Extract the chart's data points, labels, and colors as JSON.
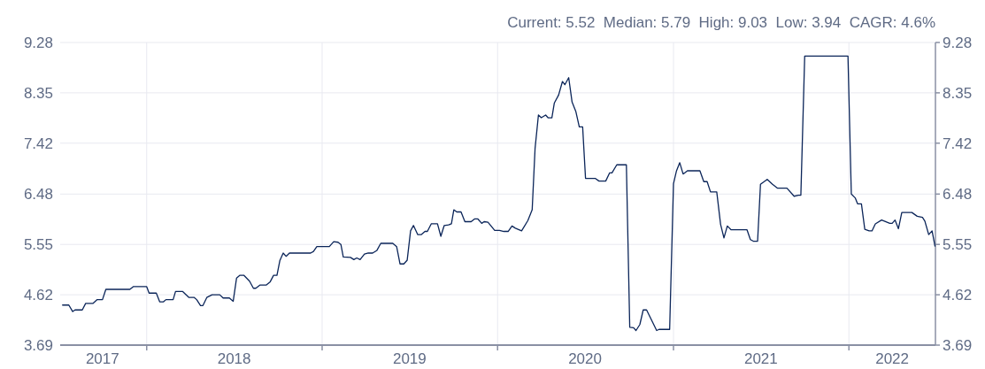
{
  "chart_data": {
    "type": "line",
    "title": "Current: 5.52  Median: 5.79  High: 9.03  Low: 3.94  CAGR: 4.6%",
    "x": [
      "2017-07-10",
      "2017-07-23",
      "2017-07-31",
      "2017-08-05",
      "2017-08-20",
      "2017-08-27",
      "2017-09-11",
      "2017-09-20",
      "2017-10-01",
      "2017-10-08",
      "2017-10-21",
      "2017-11-27",
      "2017-12-04",
      "2018-01-01",
      "2018-01-06",
      "2018-01-21",
      "2018-01-28",
      "2018-02-05",
      "2018-02-10",
      "2018-02-25",
      "2018-03-02",
      "2018-03-17",
      "2018-03-30",
      "2018-04-10",
      "2018-04-15",
      "2018-04-23",
      "2018-04-28",
      "2018-05-06",
      "2018-05-17",
      "2018-06-02",
      "2018-06-09",
      "2018-06-22",
      "2018-06-30",
      "2018-07-07",
      "2018-07-14",
      "2018-07-22",
      "2018-08-03",
      "2018-08-11",
      "2018-08-16",
      "2018-08-25",
      "2018-09-07",
      "2018-09-15",
      "2018-09-22",
      "2018-09-29",
      "2018-10-05",
      "2018-10-12",
      "2018-10-18",
      "2018-10-25",
      "2018-12-08",
      "2018-12-14",
      "2018-12-21",
      "2019-01-16",
      "2019-01-25",
      "2019-02-03",
      "2019-02-09",
      "2019-02-14",
      "2019-03-01",
      "2019-03-08",
      "2019-03-14",
      "2019-03-21",
      "2019-03-30",
      "2019-04-07",
      "2019-04-16",
      "2019-04-25",
      "2019-05-03",
      "2019-05-28",
      "2019-06-05",
      "2019-06-12",
      "2019-06-20",
      "2019-06-27",
      "2019-07-04",
      "2019-07-10",
      "2019-07-19",
      "2019-07-26",
      "2019-08-03",
      "2019-08-08",
      "2019-08-16",
      "2019-08-29",
      "2019-09-05",
      "2019-09-12",
      "2019-09-21",
      "2019-09-27",
      "2019-10-02",
      "2019-10-08",
      "2019-10-17",
      "2019-10-25",
      "2019-11-07",
      "2019-11-14",
      "2019-11-21",
      "2019-11-29",
      "2019-12-04",
      "2019-12-12",
      "2019-12-26",
      "2020-01-05",
      "2020-01-14",
      "2020-01-23",
      "2020-01-31",
      "2020-02-07",
      "2020-02-20",
      "2020-03-04",
      "2020-03-13",
      "2020-03-19",
      "2020-03-26",
      "2020-04-01",
      "2020-04-10",
      "2020-04-15",
      "2020-04-23",
      "2020-04-28",
      "2020-05-07",
      "2020-05-15",
      "2020-05-20",
      "2020-05-28",
      "2020-06-04",
      "2020-06-12",
      "2020-06-19",
      "2020-06-26",
      "2020-07-02",
      "2020-07-22",
      "2020-07-30",
      "2020-08-13",
      "2020-08-21",
      "2020-08-26",
      "2020-09-05",
      "2020-09-25",
      "2020-10-02",
      "2020-10-10",
      "2020-10-15",
      "2020-10-23",
      "2020-10-30",
      "2020-11-06",
      "2020-11-27",
      "2020-12-02",
      "2020-12-24",
      "2021-01-01",
      "2021-01-07",
      "2021-01-14",
      "2021-01-21",
      "2021-01-30",
      "2021-02-25",
      "2021-03-05",
      "2021-03-12",
      "2021-03-19",
      "2021-04-01",
      "2021-04-09",
      "2021-04-16",
      "2021-04-23",
      "2021-05-01",
      "2021-06-03",
      "2021-06-10",
      "2021-06-16",
      "2021-06-25",
      "2021-07-01",
      "2021-07-15",
      "2021-07-26",
      "2021-08-05",
      "2021-08-25",
      "2021-09-09",
      "2021-09-18",
      "2021-09-23",
      "2021-10-01",
      "2021-12-30",
      "2022-01-06",
      "2022-01-14",
      "2022-01-19",
      "2022-01-27",
      "2022-02-03",
      "2022-02-12",
      "2022-02-18",
      "2022-02-25",
      "2022-03-10",
      "2022-03-27",
      "2022-04-01",
      "2022-04-07",
      "2022-04-14",
      "2022-04-21",
      "2022-05-12",
      "2022-05-23",
      "2022-06-03",
      "2022-06-08",
      "2022-06-16",
      "2022-06-23",
      "2022-06-29"
    ],
    "series": [
      {
        "color": "#0b2559",
        "values": [
          4.43,
          4.43,
          4.31,
          4.34,
          4.34,
          4.46,
          4.46,
          4.53,
          4.53,
          4.72,
          4.72,
          4.72,
          4.77,
          4.77,
          4.65,
          4.65,
          4.49,
          4.49,
          4.53,
          4.53,
          4.68,
          4.68,
          4.57,
          4.57,
          4.53,
          4.42,
          4.42,
          4.57,
          4.62,
          4.62,
          4.56,
          4.56,
          4.5,
          4.93,
          4.98,
          4.98,
          4.87,
          4.74,
          4.74,
          4.8,
          4.8,
          4.86,
          4.98,
          4.98,
          5.25,
          5.39,
          5.33,
          5.39,
          5.39,
          5.42,
          5.51,
          5.51,
          5.6,
          5.59,
          5.55,
          5.32,
          5.31,
          5.27,
          5.3,
          5.27,
          5.37,
          5.39,
          5.39,
          5.44,
          5.57,
          5.57,
          5.51,
          5.19,
          5.19,
          5.26,
          5.8,
          5.9,
          5.73,
          5.73,
          5.79,
          5.79,
          5.93,
          5.93,
          5.7,
          5.9,
          5.91,
          5.93,
          6.19,
          6.15,
          6.15,
          5.97,
          5.97,
          6.02,
          6.02,
          5.94,
          5.97,
          5.96,
          5.81,
          5.81,
          5.79,
          5.79,
          5.89,
          5.85,
          5.8,
          5.99,
          6.19,
          7.32,
          7.94,
          7.89,
          7.94,
          7.89,
          7.89,
          8.16,
          8.31,
          8.56,
          8.5,
          8.63,
          8.18,
          8.0,
          7.72,
          7.72,
          6.77,
          6.77,
          6.72,
          6.72,
          6.87,
          6.87,
          7.02,
          7.02,
          4.02,
          4.01,
          3.96,
          4.07,
          4.34,
          4.34,
          3.96,
          3.98,
          3.98,
          6.67,
          6.9,
          7.06,
          6.85,
          6.91,
          6.91,
          6.71,
          6.71,
          6.52,
          6.52,
          5.92,
          5.67,
          5.89,
          5.82,
          5.82,
          5.64,
          5.61,
          5.61,
          6.66,
          6.75,
          6.66,
          6.59,
          6.59,
          6.44,
          6.46,
          6.46,
          9.03,
          9.03,
          6.48,
          6.41,
          6.3,
          6.3,
          5.83,
          5.8,
          5.8,
          5.93,
          6.0,
          5.94,
          5.94,
          6.0,
          5.84,
          6.14,
          6.14,
          6.07,
          6.05,
          5.98,
          5.73,
          5.8,
          5.52
        ]
      }
    ],
    "xlim": [
      "2017-07-05",
      "2022-06-30"
    ],
    "xticks": [
      {
        "value": "2017-10-01",
        "label": "2017"
      },
      {
        "value": "2018-01-01",
        "label": null
      },
      {
        "value": "2018-07-02",
        "label": "2018"
      },
      {
        "value": "2019-01-01",
        "label": null
      },
      {
        "value": "2019-07-02",
        "label": "2019"
      },
      {
        "value": "2020-01-01",
        "label": null
      },
      {
        "value": "2020-07-01",
        "label": "2020"
      },
      {
        "value": "2021-01-01",
        "label": null
      },
      {
        "value": "2021-07-02",
        "label": "2021"
      },
      {
        "value": "2022-01-01",
        "label": null
      },
      {
        "value": "2022-04-01",
        "label": "2022"
      }
    ],
    "ylim": [
      3.69,
      9.28
    ],
    "yticks": [
      3.69,
      4.62,
      5.55,
      6.48,
      7.42,
      8.35,
      9.28
    ],
    "y2lim": [
      3.69,
      9.28
    ],
    "y2ticks": [
      3.69,
      4.62,
      5.55,
      6.48,
      7.42,
      8.35,
      9.28
    ],
    "grid": true,
    "marker": "none",
    "line_style": "solid"
  }
}
